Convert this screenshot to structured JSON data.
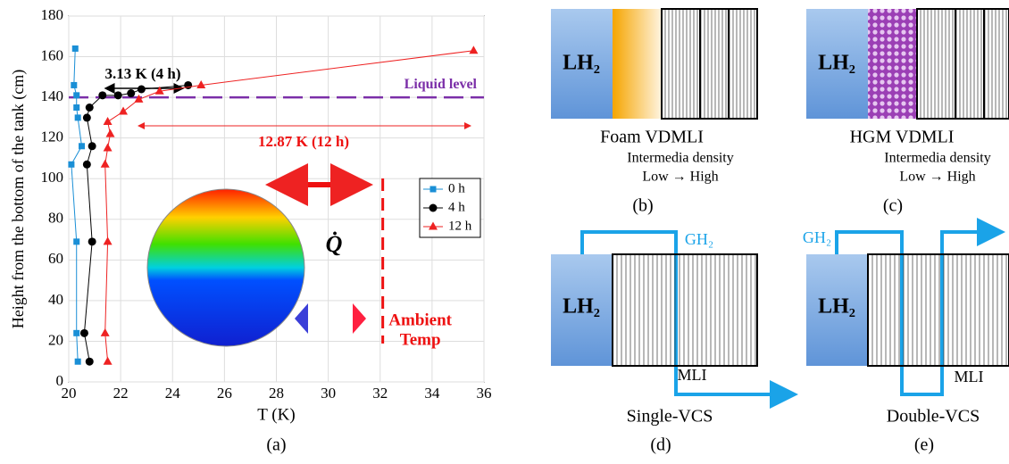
{
  "chart_data": {
    "type": "scatter-line",
    "xlabel": "T (K)",
    "ylabel": "Height from the bottom of the tank (cm)",
    "caption": "(a)",
    "xlim": [
      20,
      36
    ],
    "xticks": [
      20,
      22,
      24,
      26,
      28,
      30,
      32,
      34,
      36
    ],
    "ylim": [
      0,
      180
    ],
    "yticks": [
      0,
      20,
      40,
      60,
      80,
      100,
      120,
      140,
      160,
      180
    ],
    "legend": "right",
    "series": [
      {
        "name": "0 h",
        "color": "#1a8fd6",
        "marker": "square",
        "x": [
          20.25,
          20.2,
          20.3,
          20.3,
          20.35,
          20.5,
          20.1,
          20.3,
          20.3,
          20.35
        ],
        "values": [
          164,
          146,
          141,
          135,
          130,
          116,
          107,
          69,
          24,
          10
        ]
      },
      {
        "name": "4 h",
        "color": "#000000",
        "marker": "circle",
        "x": [
          24.6,
          22.8,
          22.4,
          21.9,
          21.3,
          20.8,
          20.7,
          20.9,
          20.7,
          20.9,
          20.6,
          20.8
        ],
        "values": [
          146,
          144,
          142,
          141,
          141,
          135,
          130,
          116,
          107,
          69,
          24,
          10
        ]
      },
      {
        "name": "12 h",
        "color": "#ee2222",
        "marker": "triangle",
        "x": [
          35.6,
          25.1,
          23.5,
          22.7,
          22.1,
          21.5,
          21.6,
          21.5,
          21.4,
          21.5,
          21.4,
          21.5
        ],
        "values": [
          163,
          146,
          143,
          139,
          133,
          128,
          122,
          115,
          107,
          69,
          24,
          10
        ]
      }
    ],
    "reference_lines": [
      {
        "label": "Liquid level",
        "axis": "y",
        "value": 140,
        "color": "#7b2fa8"
      },
      {
        "label": [
          "Ambient",
          "Temp"
        ],
        "axis": "x",
        "value": 32.1,
        "color": "#ee1111"
      }
    ],
    "annotations": [
      "3.13 K (4 h)",
      "12.87 K (12 h)",
      "Q̇"
    ]
  },
  "panels": [
    {
      "lh2": "LH₂",
      "name": "Foam VDMLI",
      "sub": [
        "Intermedia density",
        "Low → High"
      ],
      "caption": "(b)"
    },
    {
      "lh2": "LH₂",
      "name": "HGM VDMLI",
      "sub": [
        "Intermedia density",
        "Low → High"
      ],
      "caption": "(c)"
    },
    {
      "lh2": "LH₂",
      "gas": "GH₂",
      "mli": "MLI",
      "name": "Single-VCS",
      "caption": "(d)"
    },
    {
      "lh2": "LH₂",
      "gas": "GH₂",
      "mli": "MLI",
      "name": "Double-VCS",
      "caption": "(e)"
    }
  ]
}
